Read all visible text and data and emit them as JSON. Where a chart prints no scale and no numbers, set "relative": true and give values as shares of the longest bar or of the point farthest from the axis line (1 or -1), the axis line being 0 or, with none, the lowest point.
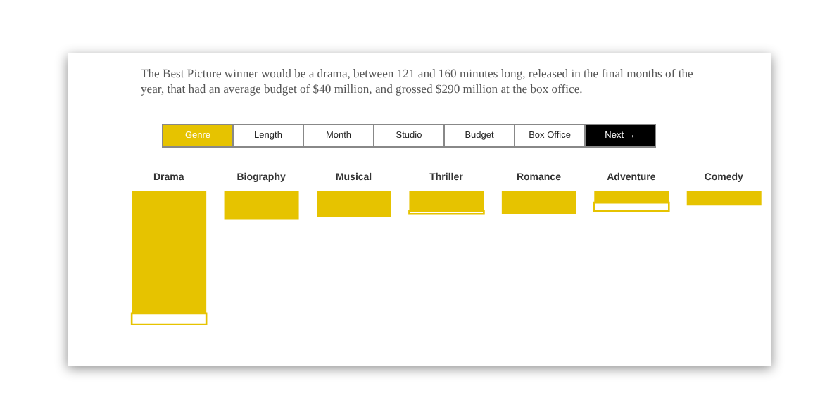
{
  "chart_data": {
    "type": "bar",
    "stacked": true,
    "relative": true,
    "title": "The Best Picture winner would be a drama, between 121 and 160 minutes long, released in the final months of the year, that had an average budget of $40 million, and grossed $290 million at the box office.",
    "annotations": [
      "Genre",
      "Length",
      "Month",
      "Studio",
      "Budget",
      "Box Office",
      "Next →"
    ],
    "categories": [
      "Drama",
      "Biography",
      "Musical",
      "Thriller",
      "Romance",
      "Adventure",
      "Comedy"
    ],
    "series": [
      {
        "color": "#e6c300",
        "values": [
          -0.915,
          -0.213,
          -0.191,
          -0.149,
          -0.17,
          -0.085,
          -0.106
        ]
      },
      {
        "color": "#ffffff",
        "values": [
          -0.085,
          0,
          0,
          -0.021,
          0,
          -0.064,
          0
        ]
      }
    ]
  }
}
